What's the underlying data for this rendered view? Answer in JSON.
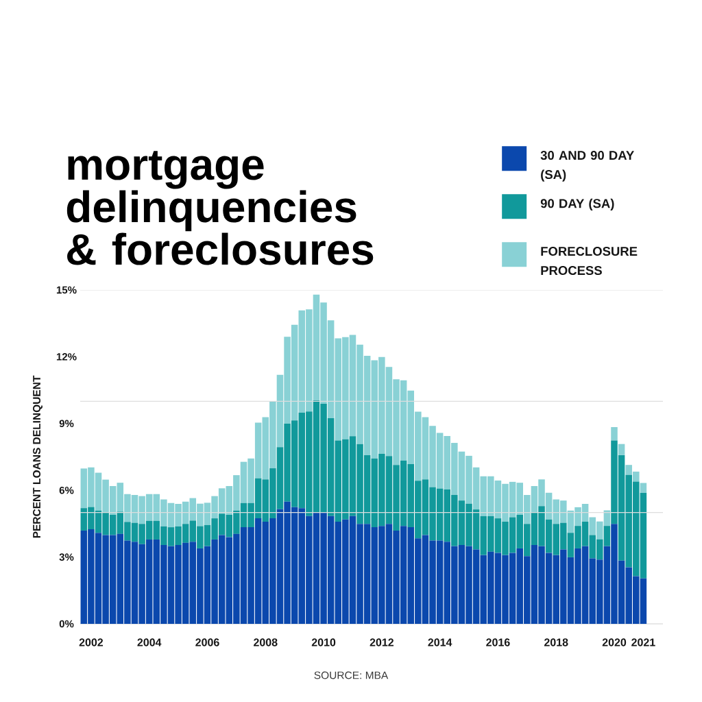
{
  "chart_data": {
    "type": "bar",
    "stacked": true,
    "title": "mortgage delinquencies & foreclosures",
    "ylabel": "PERCENT LOANS DELINQUENT",
    "annotations": [
      "SOURCE: MBA"
    ],
    "categories": [
      null,
      "2002",
      null,
      null,
      null,
      null,
      null,
      null,
      null,
      "2004",
      null,
      null,
      null,
      null,
      null,
      null,
      null,
      "2006",
      null,
      null,
      null,
      null,
      null,
      null,
      null,
      "2008",
      null,
      null,
      null,
      null,
      null,
      null,
      null,
      "2010",
      null,
      null,
      null,
      null,
      null,
      null,
      null,
      "2012",
      null,
      null,
      null,
      null,
      null,
      null,
      null,
      "2014",
      null,
      null,
      null,
      null,
      null,
      null,
      null,
      "2016",
      null,
      null,
      null,
      null,
      null,
      null,
      null,
      "2018",
      null,
      null,
      null,
      null,
      null,
      null,
      null,
      "2020",
      null,
      null,
      null,
      "2021"
    ],
    "series": [
      {
        "name": "30 AND 90 DAY (SA)",
        "color": "#0b48ad",
        "values": [
          4.19,
          4.25,
          4.09,
          3.99,
          3.99,
          4.04,
          3.74,
          3.69,
          3.58,
          3.79,
          3.79,
          3.54,
          3.49,
          3.54,
          3.64,
          3.69,
          3.39,
          3.49,
          3.79,
          3.99,
          3.9,
          4.04,
          4.34,
          4.34,
          4.74,
          4.59,
          4.74,
          5.15,
          5.49,
          5.24,
          5.2,
          4.84,
          4.99,
          4.99,
          4.84,
          4.59,
          4.69,
          4.84,
          4.49,
          4.49,
          4.34,
          4.4,
          4.49,
          4.19,
          4.4,
          4.34,
          3.84,
          3.99,
          3.74,
          3.74,
          3.69,
          3.49,
          3.54,
          3.49,
          3.34,
          3.09,
          3.24,
          3.19,
          3.09,
          3.19,
          3.39,
          3.04,
          3.54,
          3.49,
          3.19,
          3.09,
          3.34,
          2.99,
          3.39,
          3.49,
          2.94,
          2.89,
          3.49,
          4.49,
          2.84,
          2.54,
          2.14,
          2.04
        ]
      },
      {
        "name": "90 DAY (SA)",
        "color": "#11999b",
        "values": [
          1.01,
          1.0,
          1.0,
          1.01,
          0.91,
          1.0,
          0.84,
          0.85,
          0.91,
          0.84,
          0.84,
          0.84,
          0.85,
          0.84,
          0.85,
          0.95,
          1.0,
          0.95,
          0.95,
          0.96,
          1.0,
          1.05,
          1.09,
          1.09,
          1.8,
          1.9,
          2.25,
          2.79,
          3.5,
          3.9,
          4.29,
          4.7,
          5.05,
          4.9,
          4.4,
          3.65,
          3.6,
          3.59,
          3.59,
          3.09,
          3.09,
          3.24,
          3.05,
          2.95,
          2.94,
          2.84,
          2.59,
          2.5,
          2.4,
          2.34,
          2.35,
          2.3,
          2.0,
          1.91,
          1.8,
          1.75,
          1.6,
          1.55,
          1.5,
          1.6,
          1.51,
          1.45,
          1.46,
          1.8,
          1.5,
          1.4,
          1.2,
          1.1,
          1.01,
          1.1,
          1.05,
          0.91,
          0.91,
          3.75,
          4.74,
          4.15,
          4.25,
          3.84
        ]
      },
      {
        "name": "FORECLOSURE PROCESS",
        "color": "#89d1d5",
        "values": [
          1.78,
          1.78,
          1.7,
          1.48,
          1.29,
          1.3,
          1.25,
          1.25,
          1.25,
          1.2,
          1.2,
          1.21,
          1.09,
          1.01,
          1.0,
          1.01,
          1.01,
          1.0,
          1.0,
          1.14,
          1.29,
          1.59,
          1.85,
          2.0,
          2.5,
          2.8,
          3.0,
          3.25,
          3.91,
          4.3,
          4.59,
          4.59,
          4.75,
          4.55,
          4.4,
          4.59,
          4.59,
          4.55,
          4.46,
          4.46,
          4.41,
          4.35,
          4.0,
          3.85,
          3.6,
          3.3,
          3.1,
          2.8,
          2.75,
          2.5,
          2.4,
          2.34,
          2.2,
          2.15,
          1.89,
          1.79,
          1.79,
          1.7,
          1.7,
          1.59,
          1.44,
          1.3,
          1.19,
          1.2,
          1.2,
          1.1,
          1.0,
          1.0,
          0.84,
          0.8,
          0.8,
          0.8,
          0.7,
          0.6,
          0.5,
          0.45,
          0.45,
          0.45
        ]
      }
    ],
    "ylim": [
      0,
      15
    ],
    "yticks": [
      {
        "value": 0,
        "label": "0%"
      },
      {
        "value": 3,
        "label": "3%"
      },
      {
        "value": 6,
        "label": "6%"
      },
      {
        "value": 9,
        "label": "9%"
      },
      {
        "value": 12,
        "label": "12%"
      },
      {
        "value": 15,
        "label": "15%"
      }
    ],
    "ref_lines": [
      {
        "axis": "y",
        "value": 5,
        "color": "#dddddd"
      },
      {
        "axis": "y",
        "value": 10,
        "color": "#dddddd"
      },
      {
        "axis": "y",
        "value": 15,
        "color": "#dddddd"
      }
    ],
    "legend": "top right"
  }
}
